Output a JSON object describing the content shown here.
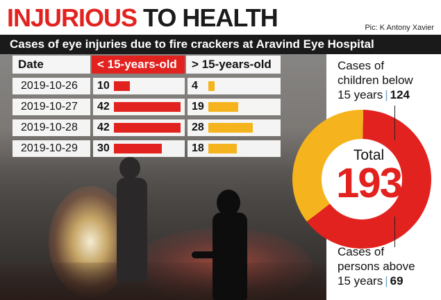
{
  "header": {
    "title_red": "INJURIOUS",
    "title_dark": "TO HEALTH",
    "credit": "Pic: K Antony Xavier"
  },
  "subtitle": "Cases of eye injuries due to fire crackers at Aravind Eye Hospital",
  "colors": {
    "accent_red": "#e2221f",
    "accent_yellow": "#f5b41d",
    "title_dark": "#1a1a1a"
  },
  "chart_data": [
    {
      "type": "bar",
      "title": "",
      "categories": [
        "2019-10-26",
        "2019-10-27",
        "2019-10-28",
        "2019-10-29"
      ],
      "column_header": "Date",
      "series": [
        {
          "name": "< 15-years-old",
          "values": [
            10,
            42,
            42,
            30
          ],
          "color": "#e2221f"
        },
        {
          "name": "> 15-years-old",
          "values": [
            4,
            19,
            28,
            18
          ],
          "color": "#f5b41d"
        }
      ],
      "xlim": [
        0,
        42
      ]
    },
    {
      "type": "pie",
      "donut": true,
      "total_label": "Total",
      "total": 193,
      "slices": [
        {
          "label_line1": "Cases of",
          "label_line2": "children below",
          "label_line3": "15 years",
          "value": 124,
          "color": "#e2221f"
        },
        {
          "label_line1": "Cases of",
          "label_line2": "persons above",
          "label_line3": "15 years",
          "value": 69,
          "color": "#f5b41d"
        }
      ]
    }
  ]
}
